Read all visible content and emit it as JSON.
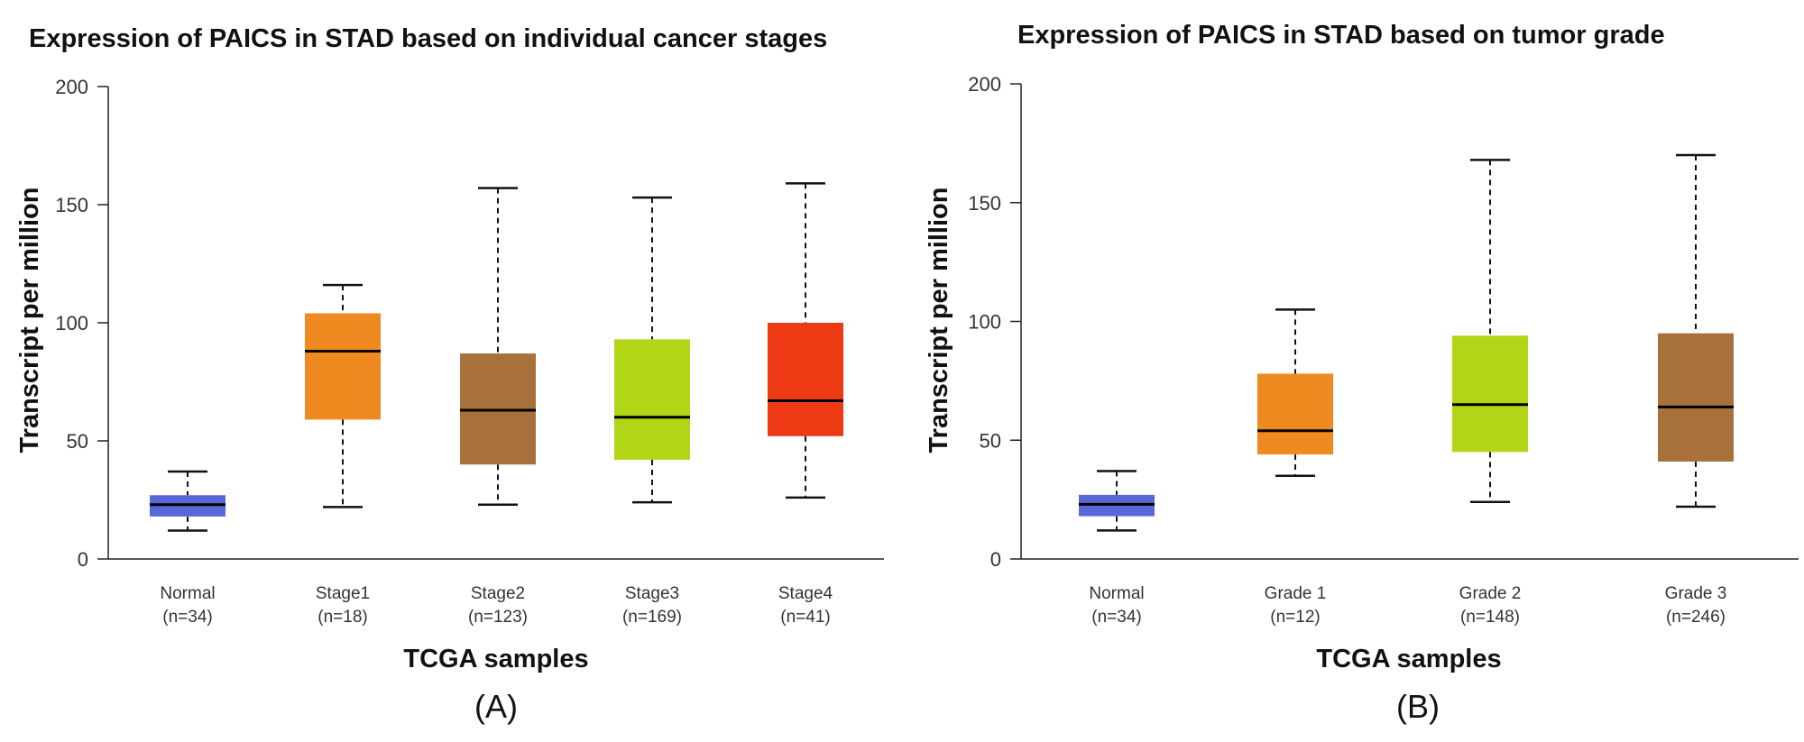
{
  "chart_data": [
    {
      "type": "boxplot",
      "title": "Expression of PAICS in STAD based on individual cancer stages",
      "xlabel": "TCGA samples",
      "ylabel": "Transcript per million",
      "panel_label": "(A)",
      "ylim": [
        0,
        200
      ],
      "yticks": [
        0,
        50,
        100,
        150,
        200
      ],
      "categories": [
        {
          "name": "Normal",
          "n": "(n=34)",
          "color": "#5868d8",
          "min": 12,
          "q1": 18,
          "median": 23,
          "q3": 27,
          "max": 37
        },
        {
          "name": "Stage1",
          "n": "(n=18)",
          "color": "#ef8a21",
          "min": 22,
          "q1": 59,
          "median": 88,
          "q3": 104,
          "max": 116
        },
        {
          "name": "Stage2",
          "n": "(n=123)",
          "color": "#a8703a",
          "min": 23,
          "q1": 40,
          "median": 63,
          "q3": 87,
          "max": 157
        },
        {
          "name": "Stage3",
          "n": "(n=169)",
          "color": "#b1d618",
          "min": 24,
          "q1": 42,
          "median": 60,
          "q3": 93,
          "max": 153
        },
        {
          "name": "Stage4",
          "n": "(n=41)",
          "color": "#ee3a14",
          "min": 26,
          "q1": 52,
          "median": 67,
          "q3": 100,
          "max": 159
        }
      ]
    },
    {
      "type": "boxplot",
      "title": "Expression of PAICS in STAD based on tumor grade",
      "xlabel": "TCGA samples",
      "ylabel": "Transcript per million",
      "panel_label": "(B)",
      "ylim": [
        0,
        200
      ],
      "yticks": [
        0,
        50,
        100,
        150,
        200
      ],
      "categories": [
        {
          "name": "Normal",
          "n": "(n=34)",
          "color": "#5868d8",
          "min": 12,
          "q1": 18,
          "median": 23,
          "q3": 27,
          "max": 37
        },
        {
          "name": "Grade 1",
          "n": "(n=12)",
          "color": "#ef8a21",
          "min": 35,
          "q1": 44,
          "median": 54,
          "q3": 78,
          "max": 105
        },
        {
          "name": "Grade 2",
          "n": "(n=148)",
          "color": "#b1d618",
          "min": 24,
          "q1": 45,
          "median": 65,
          "q3": 94,
          "max": 168
        },
        {
          "name": "Grade 3",
          "n": "(n=246)",
          "color": "#a8703a",
          "min": 22,
          "q1": 41,
          "median": 64,
          "q3": 95,
          "max": 170
        }
      ]
    }
  ]
}
